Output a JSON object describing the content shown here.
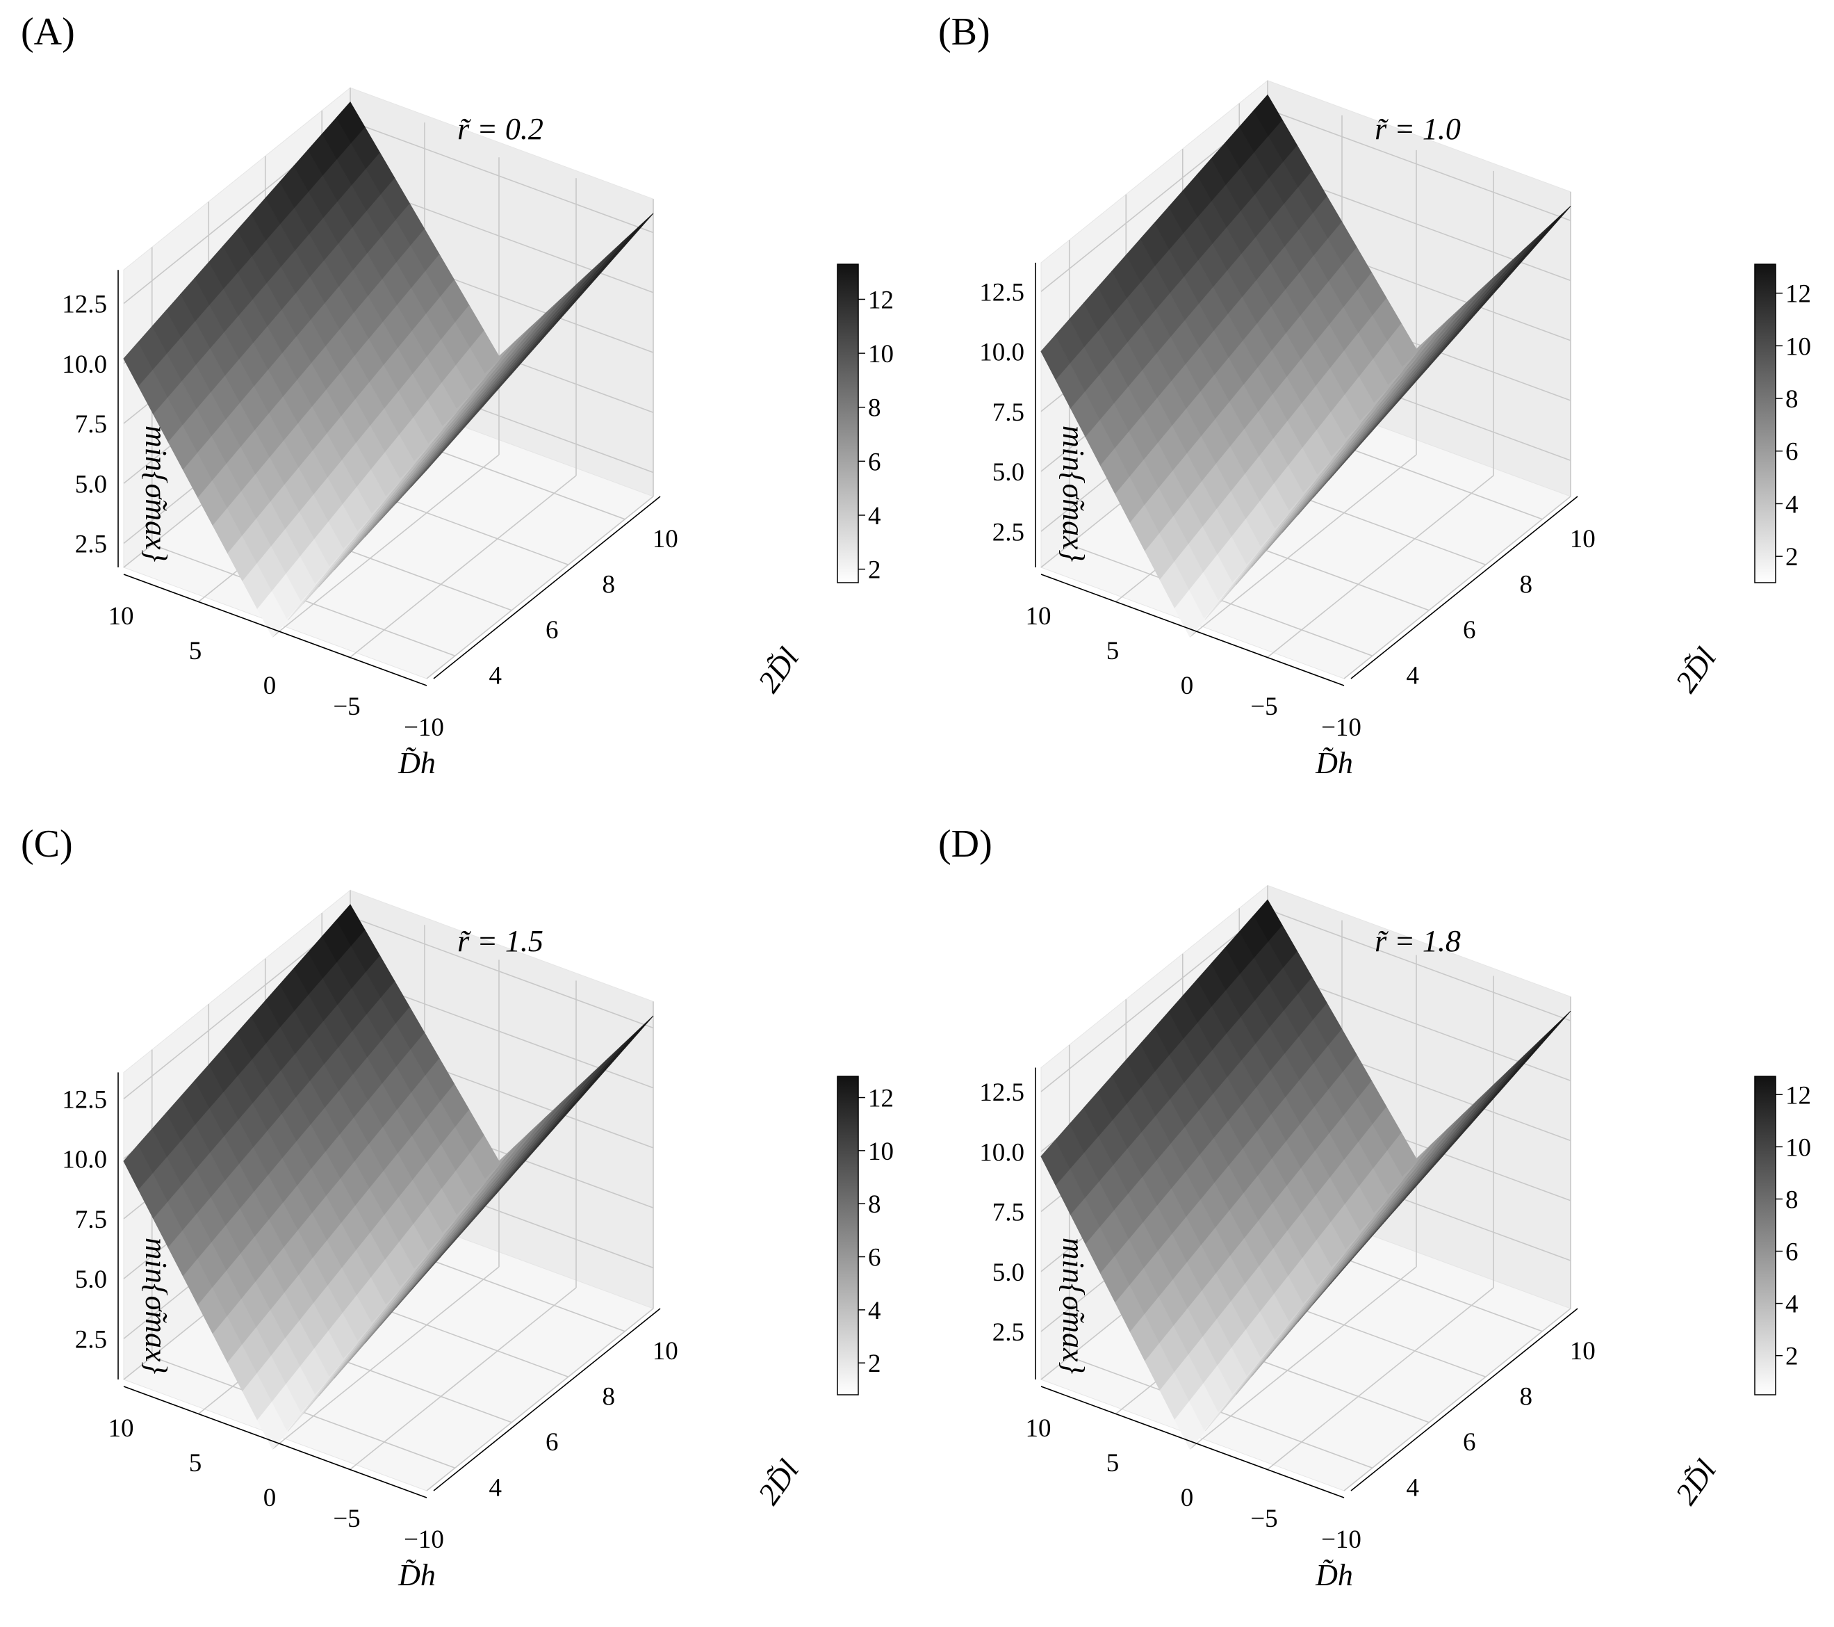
{
  "colormap": {
    "low": "#ffffff",
    "high": "#111111"
  },
  "chart_data": [
    {
      "type": "surface",
      "panel_label": "(A)",
      "title": "r̃ = 0.2",
      "xlabel": "D̃h",
      "ylabel": "2D̃l",
      "zlabel": "min{σ̃max}",
      "xlim": [
        -10,
        10
      ],
      "ylim": [
        3,
        11
      ],
      "zlim": [
        1.5,
        13.3
      ],
      "xticks": [
        10,
        5,
        0,
        -5,
        -10
      ],
      "yticks": [
        4,
        6,
        8,
        10
      ],
      "zticks": [
        2.5,
        5.0,
        7.5,
        10.0,
        12.5
      ],
      "colorbar": {
        "min": 1.5,
        "max": 13.3,
        "ticks": [
          2,
          4,
          6,
          8,
          10,
          12
        ]
      },
      "corners": [
        {
          "x": 10,
          "y": 3,
          "z": 10.2
        },
        {
          "x": -10,
          "y": 3,
          "z": 10.2
        },
        {
          "x": 10,
          "y": 11,
          "z": 13.3
        },
        {
          "x": -10,
          "y": 11,
          "z": 13.3
        },
        {
          "x": 0,
          "y": 3,
          "z": 1.5
        },
        {
          "x": 0,
          "y": 11,
          "z": 5.6
        }
      ]
    },
    {
      "type": "surface",
      "panel_label": "(B)",
      "title": "r̃ = 1.0",
      "xlabel": "D̃h",
      "ylabel": "2D̃l",
      "zlabel": "min{σ̃max}",
      "xlim": [
        -10,
        10
      ],
      "ylim": [
        3,
        11
      ],
      "zlim": [
        1.0,
        13.1
      ],
      "xticks": [
        10,
        5,
        0,
        -5,
        -10
      ],
      "yticks": [
        4,
        6,
        8,
        10
      ],
      "zticks": [
        2.5,
        5.0,
        7.5,
        10.0,
        12.5
      ],
      "colorbar": {
        "min": 1.0,
        "max": 13.1,
        "ticks": [
          2,
          4,
          6,
          8,
          10,
          12
        ]
      },
      "corners": [
        {
          "x": 10,
          "y": 3,
          "z": 10.0
        },
        {
          "x": -10,
          "y": 3,
          "z": 10.0
        },
        {
          "x": 10,
          "y": 11,
          "z": 13.1
        },
        {
          "x": -10,
          "y": 11,
          "z": 13.1
        },
        {
          "x": 0,
          "y": 3,
          "z": 1.0
        },
        {
          "x": 0,
          "y": 11,
          "z": 5.4
        }
      ]
    },
    {
      "type": "surface",
      "panel_label": "(C)",
      "title": "r̃ = 1.5",
      "xlabel": "D̃h",
      "ylabel": "2D̃l",
      "zlabel": "min{σ̃max}",
      "xlim": [
        -10,
        10
      ],
      "ylim": [
        3,
        11
      ],
      "zlim": [
        0.8,
        13.0
      ],
      "xticks": [
        10,
        5,
        0,
        -5,
        -10
      ],
      "yticks": [
        4,
        6,
        8,
        10
      ],
      "zticks": [
        2.5,
        5.0,
        7.5,
        10.0,
        12.5
      ],
      "colorbar": {
        "min": 0.8,
        "max": 12.8,
        "ticks": [
          2,
          4,
          6,
          8,
          10,
          12
        ]
      },
      "corners": [
        {
          "x": 10,
          "y": 3,
          "z": 9.9
        },
        {
          "x": -10,
          "y": 3,
          "z": 9.9
        },
        {
          "x": 10,
          "y": 11,
          "z": 13.0
        },
        {
          "x": -10,
          "y": 11,
          "z": 13.0
        },
        {
          "x": 0,
          "y": 3,
          "z": 0.8
        },
        {
          "x": 0,
          "y": 11,
          "z": 5.2
        }
      ]
    },
    {
      "type": "surface",
      "panel_label": "(D)",
      "title": "r̃ = 1.8",
      "xlabel": "D̃h",
      "ylabel": "2D̃l",
      "zlabel": "min{σ̃max}",
      "xlim": [
        -10,
        10
      ],
      "ylim": [
        3,
        11
      ],
      "zlim": [
        0.5,
        12.9
      ],
      "xticks": [
        10,
        5,
        0,
        -5,
        -10
      ],
      "yticks": [
        4,
        6,
        8,
        10
      ],
      "zticks": [
        2.5,
        5.0,
        7.5,
        10.0,
        12.5
      ],
      "colorbar": {
        "min": 0.5,
        "max": 12.7,
        "ticks": [
          2,
          4,
          6,
          8,
          10,
          12
        ]
      },
      "corners": [
        {
          "x": 10,
          "y": 3,
          "z": 9.8
        },
        {
          "x": -10,
          "y": 3,
          "z": 9.8
        },
        {
          "x": 10,
          "y": 11,
          "z": 12.9
        },
        {
          "x": -10,
          "y": 11,
          "z": 12.9
        },
        {
          "x": 0,
          "y": 3,
          "z": 0.5
        },
        {
          "x": 0,
          "y": 11,
          "z": 5.0
        }
      ]
    }
  ]
}
